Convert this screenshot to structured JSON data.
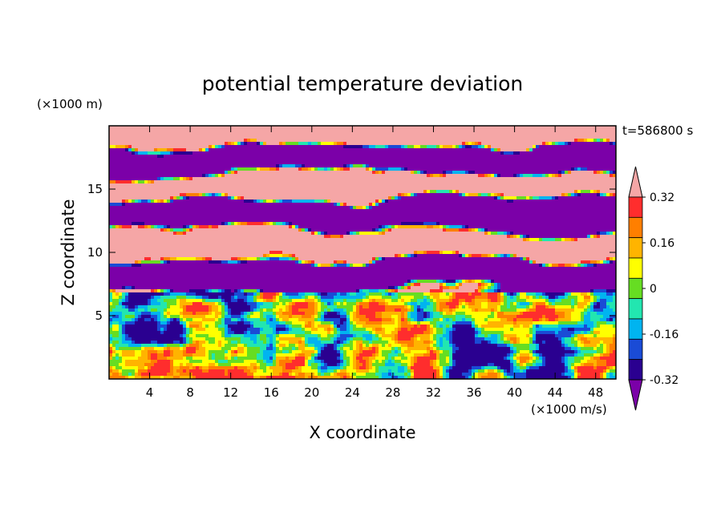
{
  "chart_data": {
    "type": "heatmap",
    "title": "potential temperature deviation",
    "xlabel": "X coordinate",
    "ylabel": "Z coordinate",
    "x_unit": "(×1000 m/s)",
    "y_unit": "(×1000 m)",
    "time_label": "t=586800 s",
    "xlim": [
      0,
      50
    ],
    "ylim": [
      0,
      20
    ],
    "x_ticks": [
      4,
      8,
      12,
      16,
      20,
      24,
      28,
      32,
      36,
      40,
      44,
      48
    ],
    "y_ticks": [
      5,
      10,
      15
    ],
    "colorbar": {
      "levels": [
        -0.4,
        -0.32,
        -0.24,
        -0.16,
        -0.08,
        0,
        0.08,
        0.16,
        0.24,
        0.32,
        0.4
      ],
      "tick_labels": [
        "0.32",
        "0.16",
        "0",
        "-0.16",
        "-0.32"
      ],
      "tick_values": [
        0.32,
        0.16,
        0,
        -0.16,
        -0.32
      ],
      "colors_low_to_high": [
        "#7b00a8",
        "#2a0090",
        "#1a4bd6",
        "#00b4f0",
        "#22e6b0",
        "#66dd22",
        "#ffff00",
        "#ffb400",
        "#ff7f00",
        "#ff2d2d",
        "#f5a6a6"
      ],
      "extend": "both"
    }
  }
}
